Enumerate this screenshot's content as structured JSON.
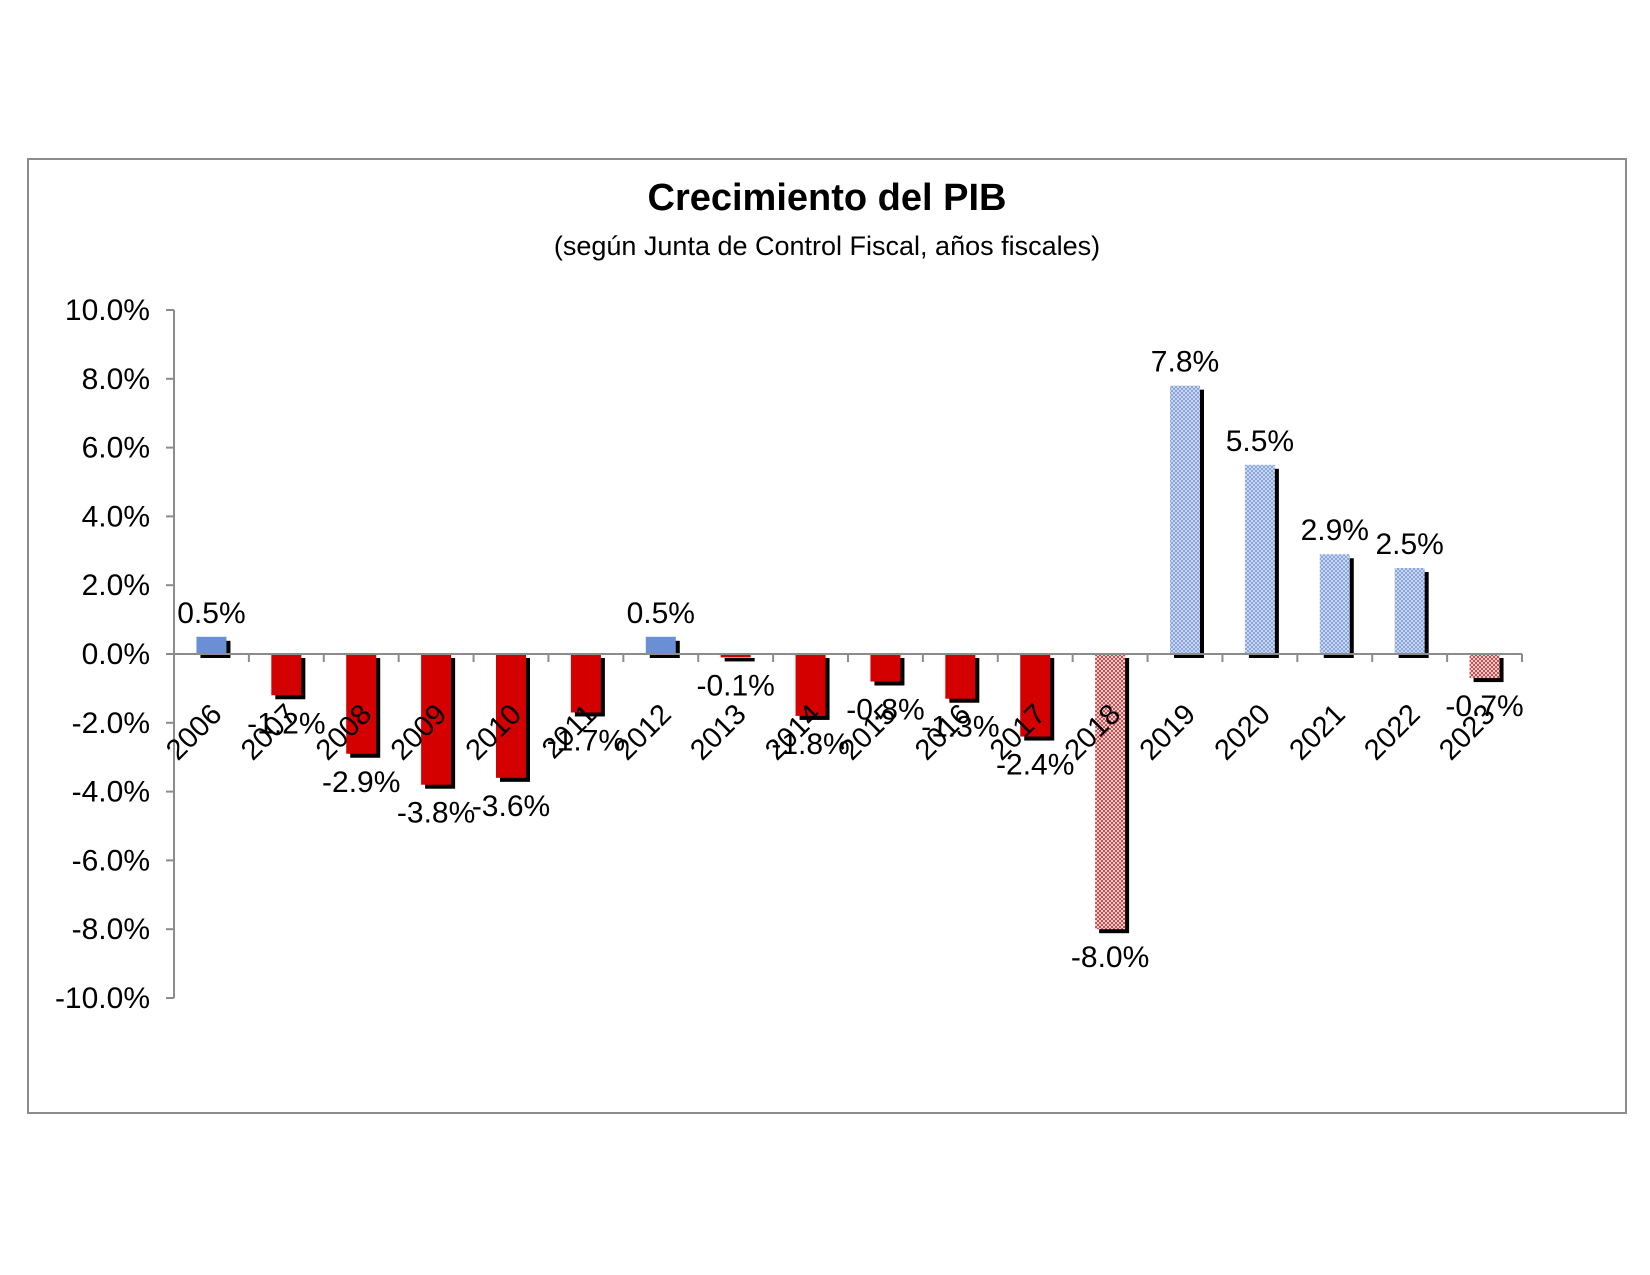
{
  "chart_data": {
    "type": "bar",
    "title": "Crecimiento del PIB",
    "subtitle": "(según Junta de Control Fiscal, años fiscales)",
    "xlabel": "",
    "ylabel": "",
    "ylim": [
      -10,
      10
    ],
    "yticks": [
      10,
      8,
      6,
      4,
      2,
      0,
      -2,
      -4,
      -6,
      -8,
      -10
    ],
    "ytick_labels": [
      "10.0%",
      "8.0%",
      "6.0%",
      "4.0%",
      "2.0%",
      "0.0%",
      "-2.0%",
      "-4.0%",
      "-6.0%",
      "-8.0%",
      "-10.0%"
    ],
    "grid": false,
    "legend": "none",
    "categories": [
      "2006",
      "2007",
      "2008",
      "2009",
      "2010",
      "2011",
      "2012",
      "2013",
      "2014",
      "2015",
      "2016",
      "2017",
      "2018",
      "2019",
      "2020",
      "2021",
      "2022",
      "2023"
    ],
    "values": [
      0.5,
      -1.2,
      -2.9,
      -3.8,
      -3.6,
      -1.7,
      0.5,
      -0.1,
      -1.8,
      -0.8,
      -1.3,
      -2.4,
      -8.0,
      7.8,
      5.5,
      2.9,
      2.5,
      -0.7
    ],
    "data_labels": [
      "0.5%",
      "-1.2%",
      "-2.9%",
      "-3.8%",
      "-3.6%",
      "-1.7%",
      "0.5%",
      "-0.1%",
      "-1.8%",
      "-0.8%",
      "-1.3%",
      "-2.4%",
      "-8.0%",
      "7.8%",
      "5.5%",
      "2.9%",
      "2.5%",
      "-0.7%"
    ],
    "bar_styles": [
      "solid",
      "solid",
      "solid",
      "solid",
      "solid",
      "solid",
      "solid",
      "solid",
      "solid",
      "solid",
      "solid",
      "solid",
      "hatched",
      "hatched",
      "hatched",
      "hatched",
      "hatched",
      "hatched"
    ],
    "colors": {
      "positive": "#6a8fd4",
      "negative": "#d40000",
      "positive_light": "#b7c9ea",
      "negative_light": "#e0a0a0",
      "shadow": "#000000",
      "axis": "#8c8c8c"
    }
  }
}
